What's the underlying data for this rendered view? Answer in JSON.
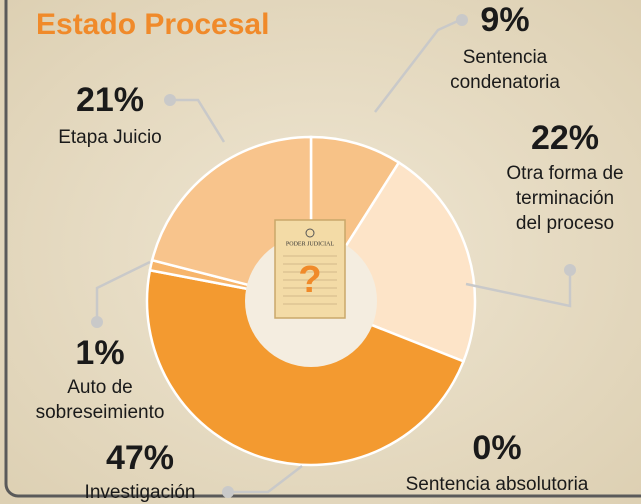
{
  "chart_data": {
    "type": "donut",
    "title": "Estado Procesal",
    "categories": [
      "Sentencia\ncondenatoria",
      "Otra forma de\nterminación\ndel proceso",
      "Sentencia absolutoria",
      "Investigación",
      "Auto de\nsobreseimiento",
      "Etapa Juicio"
    ],
    "values": [
      9,
      22,
      0,
      47,
      1,
      21
    ],
    "value_labels": [
      "9%",
      "22%",
      "0%",
      "47%",
      "1%",
      "21%"
    ],
    "colors": [
      "#f7c287",
      "#fde4c8",
      "#f6b36a",
      "#f39a30",
      "#f7b56b",
      "#f8c48c"
    ],
    "icon": {
      "text": "PODER JUDICIAL",
      "symbol": "?"
    }
  }
}
